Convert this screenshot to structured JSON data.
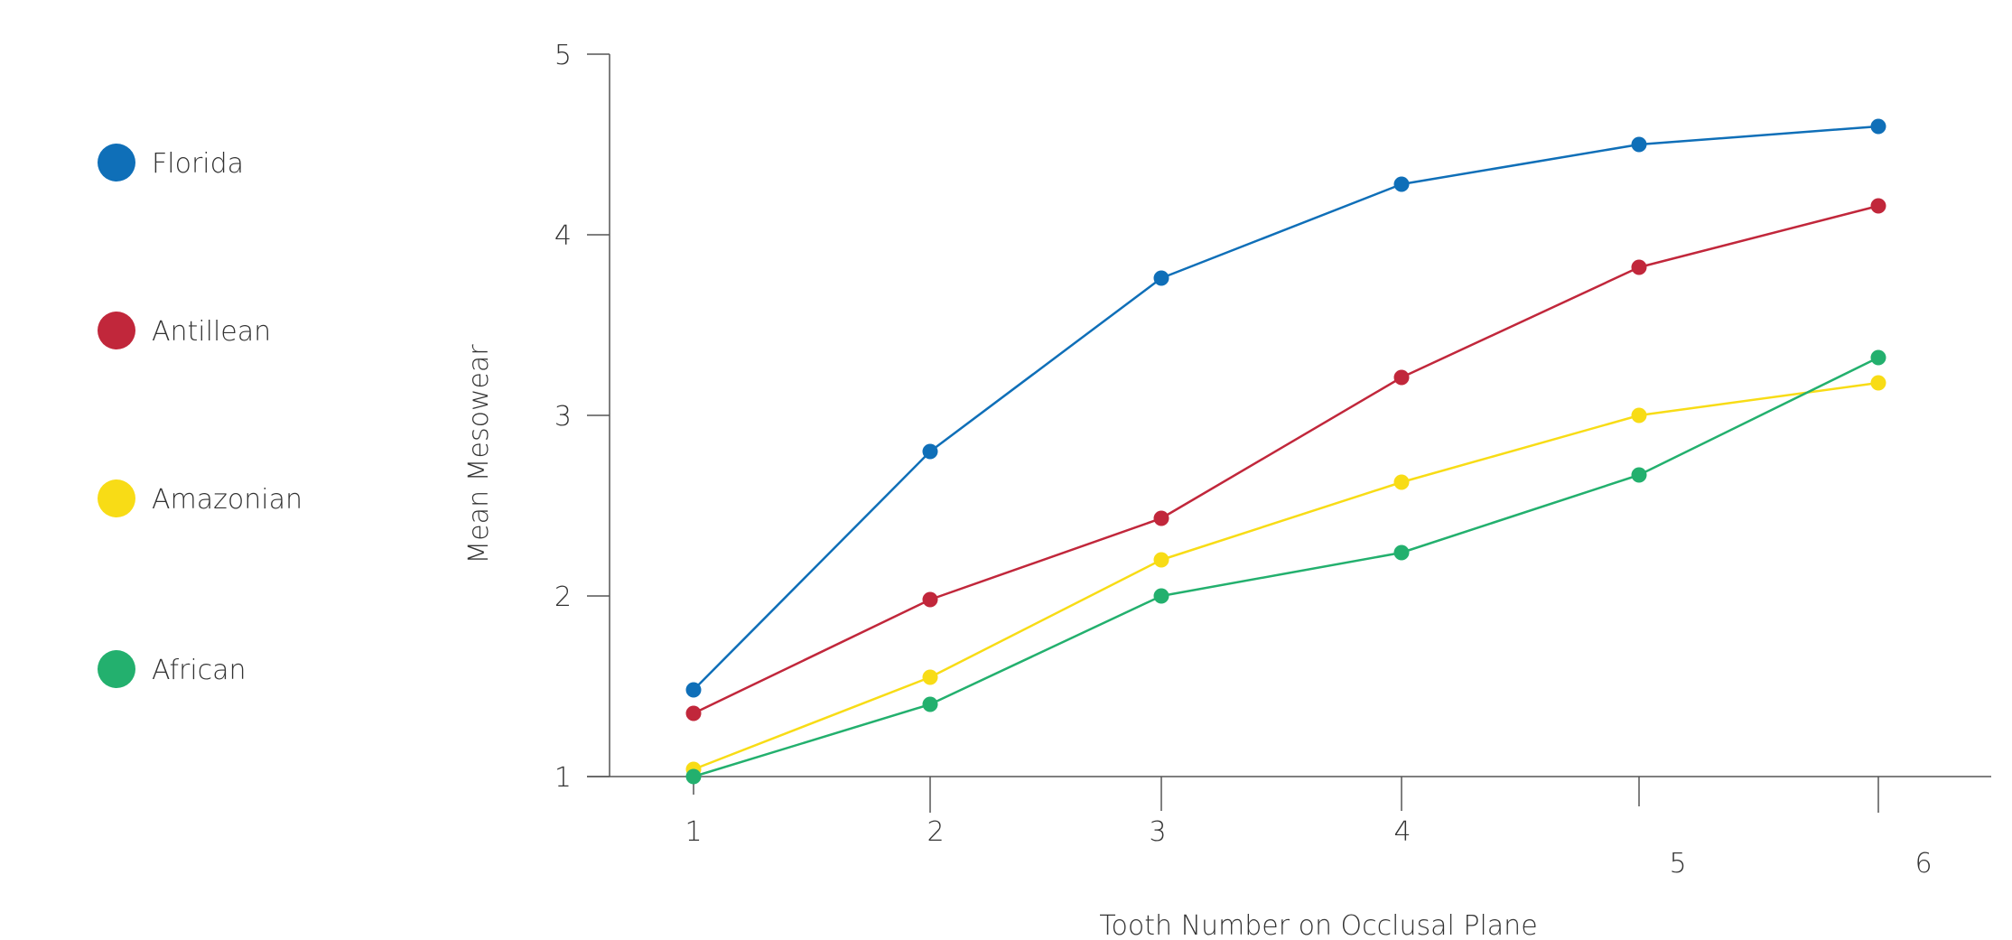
{
  "chart_data": {
    "type": "line",
    "title": "",
    "xlabel": "Tooth Number on Occlusal Plane",
    "ylabel": "Mean Mesowear",
    "categories": [
      1,
      2,
      3,
      4,
      5,
      6
    ],
    "x_tick_labels": [
      "1",
      "2",
      "3",
      "4",
      "5",
      "6"
    ],
    "y_ticks": [
      1,
      2,
      3,
      4,
      5
    ],
    "y_tick_labels": [
      "1",
      "2",
      "3",
      "4",
      "5"
    ],
    "ylim": [
      1,
      5
    ],
    "grid": false,
    "legend_position": "left",
    "series": [
      {
        "name": "Florida",
        "color": "#0f6fb8",
        "values": [
          1.48,
          2.8,
          3.76,
          4.28,
          4.5,
          4.6
        ]
      },
      {
        "name": "Antillean",
        "color": "#c1273b",
        "values": [
          1.35,
          1.98,
          2.43,
          3.21,
          3.82,
          4.16
        ]
      },
      {
        "name": "Amazonian",
        "color": "#f8dc16",
        "values": [
          1.04,
          1.55,
          2.2,
          2.63,
          3.0,
          3.18
        ]
      },
      {
        "name": "African",
        "color": "#23b06e",
        "values": [
          1.0,
          1.4,
          2.0,
          2.24,
          2.67,
          3.32
        ]
      }
    ]
  }
}
